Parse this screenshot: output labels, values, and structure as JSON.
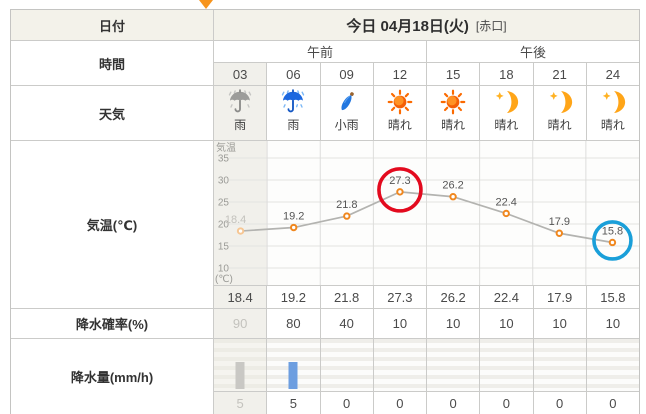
{
  "indicator": {
    "name": "current-time-arrow",
    "color": "#f7941d"
  },
  "table": {
    "date_row": {
      "label": "日付",
      "value": "今日 04月18日(火)",
      "note": "[赤口]"
    },
    "time_row": {
      "label": "時間",
      "am": "午前",
      "pm": "午後",
      "hours": [
        "03",
        "06",
        "09",
        "12",
        "15",
        "18",
        "21",
        "24"
      ],
      "past_column_index": 0
    },
    "weather_row": {
      "label": "天気",
      "items": [
        {
          "condition": "雨",
          "icon": "umbrella-rain-gray-icon",
          "past": true
        },
        {
          "condition": "雨",
          "icon": "umbrella-rain-icon"
        },
        {
          "condition": "小雨",
          "icon": "closed-umbrella-icon"
        },
        {
          "condition": "晴れ",
          "icon": "sun-icon"
        },
        {
          "condition": "晴れ",
          "icon": "sun-icon"
        },
        {
          "condition": "晴れ",
          "icon": "moon-star-icon"
        },
        {
          "condition": "晴れ",
          "icon": "moon-star-icon"
        },
        {
          "condition": "晴れ",
          "icon": "moon-star-icon"
        }
      ]
    },
    "temperature_row": {
      "label": "気温(℃)",
      "values": [
        "18.4",
        "19.2",
        "21.8",
        "27.3",
        "26.2",
        "22.4",
        "17.9",
        "15.8"
      ]
    },
    "precip_prob_row": {
      "label": "降水確率(%)",
      "values": [
        "90",
        "80",
        "40",
        "10",
        "10",
        "10",
        "10",
        "10"
      ]
    },
    "precip_amount_row": {
      "label": "降水量(mm/h)",
      "values": [
        "5",
        "5",
        "0",
        "0",
        "0",
        "0",
        "0",
        "0"
      ],
      "bars": [
        {
          "value": 5,
          "color": "#c9c8c4"
        },
        {
          "value": 5,
          "color": "#6d9ee0"
        },
        {
          "value": 0,
          "color": "#6d9ee0"
        },
        {
          "value": 0,
          "color": "#6d9ee0"
        },
        {
          "value": 0,
          "color": "#6d9ee0"
        },
        {
          "value": 0,
          "color": "#6d9ee0"
        },
        {
          "value": 0,
          "color": "#6d9ee0"
        },
        {
          "value": 0,
          "color": "#6d9ee0"
        }
      ]
    }
  },
  "chart_data": {
    "type": "line",
    "title": "気温",
    "categories": [
      "03",
      "06",
      "09",
      "12",
      "15",
      "18",
      "21",
      "24"
    ],
    "values": [
      18.4,
      19.2,
      21.8,
      27.3,
      26.2,
      22.4,
      17.9,
      15.8
    ],
    "ylabel_top": "気温",
    "ylabel_bottom": "(℃)",
    "yticks": [
      35,
      30,
      25,
      20,
      15,
      10
    ],
    "ylim": [
      7,
      38
    ],
    "grid": true,
    "legend": "none",
    "line_color": "#b3b3b0",
    "marker_color": "#f0871e",
    "past_marker_color": "#f6c693",
    "past_index": 0,
    "annotations": [
      {
        "type": "circle",
        "index": 3,
        "value": 27.3,
        "r": 21,
        "color": "#e30a1e",
        "name": "max-temp-highlight"
      },
      {
        "type": "circle",
        "index": 7,
        "value": 15.8,
        "r": 18.5,
        "color": "#1a9fd9",
        "name": "min-temp-highlight"
      }
    ]
  }
}
